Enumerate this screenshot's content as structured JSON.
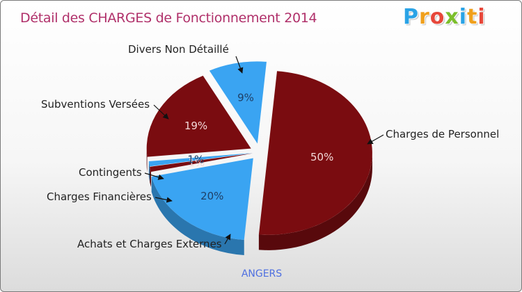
{
  "chart_data": {
    "type": "pie",
    "title": "Détail des CHARGES de Fonctionnement 2014",
    "caption": "ANGERS",
    "slices": [
      {
        "name": "Charges de Personnel",
        "value": 50,
        "label": "50%",
        "color": "#7a0c10"
      },
      {
        "name": "Achats et Charges Externes",
        "value": 20,
        "label": "20%",
        "color": "#3aa4f2"
      },
      {
        "name": "Charges Financières",
        "value": 1,
        "label": "1%",
        "color": "#7a0c10"
      },
      {
        "name": "Contingents",
        "value": 1,
        "label": "1%",
        "color": "#3aa4f2"
      },
      {
        "name": "Subventions Versées",
        "value": 19,
        "label": "19%",
        "color": "#7a0c10"
      },
      {
        "name": "Divers Non Détaillé",
        "value": 9,
        "label": "9%",
        "color": "#3aa4f2"
      }
    ]
  },
  "logo": {
    "letters": [
      {
        "ch": "P",
        "color": "#2aa3e6"
      },
      {
        "ch": "r",
        "color": "#f0a01c"
      },
      {
        "ch": "o",
        "color": "#e7473a"
      },
      {
        "ch": "x",
        "color": "#7cbf2c"
      },
      {
        "ch": "i",
        "color": "#2aa3e6"
      },
      {
        "ch": "t",
        "color": "#f0a01c"
      },
      {
        "ch": "i",
        "color": "#e7473a"
      }
    ]
  }
}
